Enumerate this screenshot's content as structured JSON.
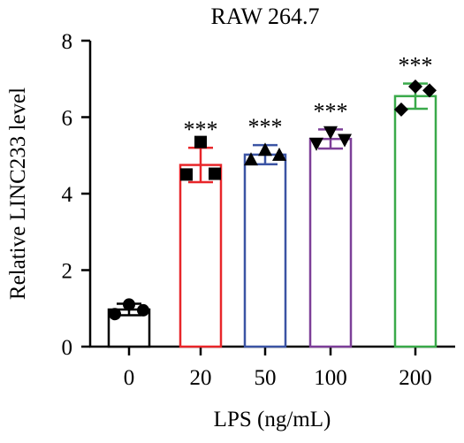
{
  "chart_data": {
    "type": "bar",
    "title": "RAW 264.7",
    "xlabel": "LPS (ng/mL)",
    "ylabel": "Relative LINC233 level",
    "ylim": [
      0,
      8
    ],
    "yticks": [
      0,
      2,
      4,
      6,
      8
    ],
    "categories": [
      "0",
      "20",
      "50",
      "100",
      "200"
    ],
    "values": [
      0.97,
      4.75,
      5.02,
      5.43,
      6.55
    ],
    "errors": [
      0.15,
      0.45,
      0.25,
      0.25,
      0.33
    ],
    "colors": [
      "#000000",
      "#e8262a",
      "#3b54a4",
      "#7d3f98",
      "#3aaa4a"
    ],
    "markers": [
      "circle",
      "square",
      "triangle-up",
      "triangle-down",
      "diamond"
    ],
    "points": [
      [
        0.85,
        1.1,
        0.95
      ],
      [
        4.5,
        5.35,
        4.52
      ],
      [
        4.9,
        5.15,
        5.02
      ],
      [
        5.3,
        5.6,
        5.4
      ],
      [
        6.2,
        6.8,
        6.7
      ]
    ],
    "significance": [
      "",
      "***",
      "***",
      "***",
      "***"
    ]
  }
}
